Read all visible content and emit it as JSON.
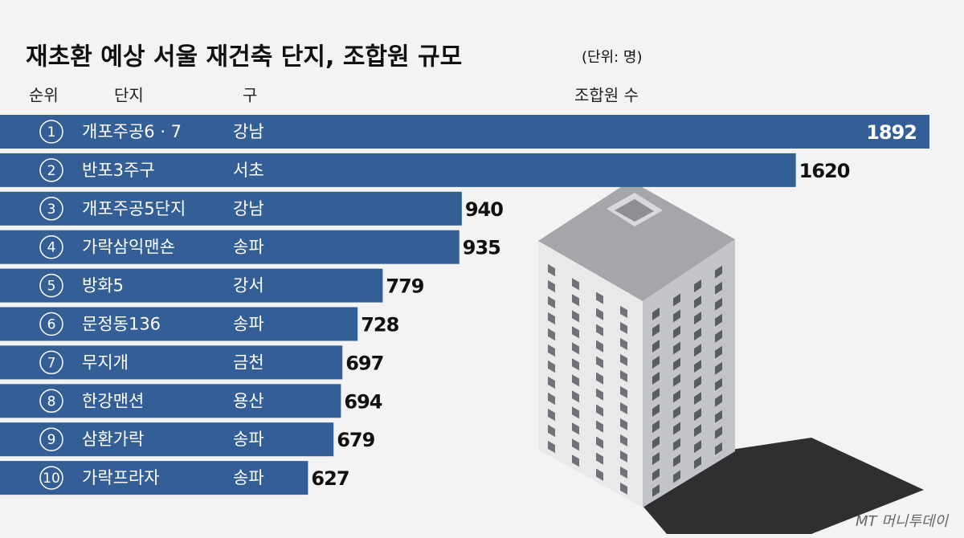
{
  "chart_data": {
    "type": "bar",
    "title": "재초환 예상 서울 재건축 단지, 조합원 규모",
    "unit": "(단위: 명)",
    "headers": [
      "순위",
      "단지",
      "구",
      "조합원 수"
    ],
    "ranks": [
      1,
      2,
      3,
      4,
      5,
      6,
      7,
      8,
      9,
      10
    ],
    "categories": [
      "개포주공6 · 7",
      "반포3주구",
      "개포주공5단지",
      "가락삼익맨숀",
      "방화5",
      "문정동136",
      "무지개",
      "한강맨션",
      "삼환가락",
      "가락프라자"
    ],
    "districts": [
      "강남",
      "서초",
      "강남",
      "송파",
      "강서",
      "송파",
      "금천",
      "용산",
      "송파",
      "송파"
    ],
    "values": [
      1892,
      1620,
      940,
      935,
      779,
      728,
      697,
      694,
      679,
      627
    ],
    "color": "#335f96",
    "source": "MT 머니투데이"
  }
}
